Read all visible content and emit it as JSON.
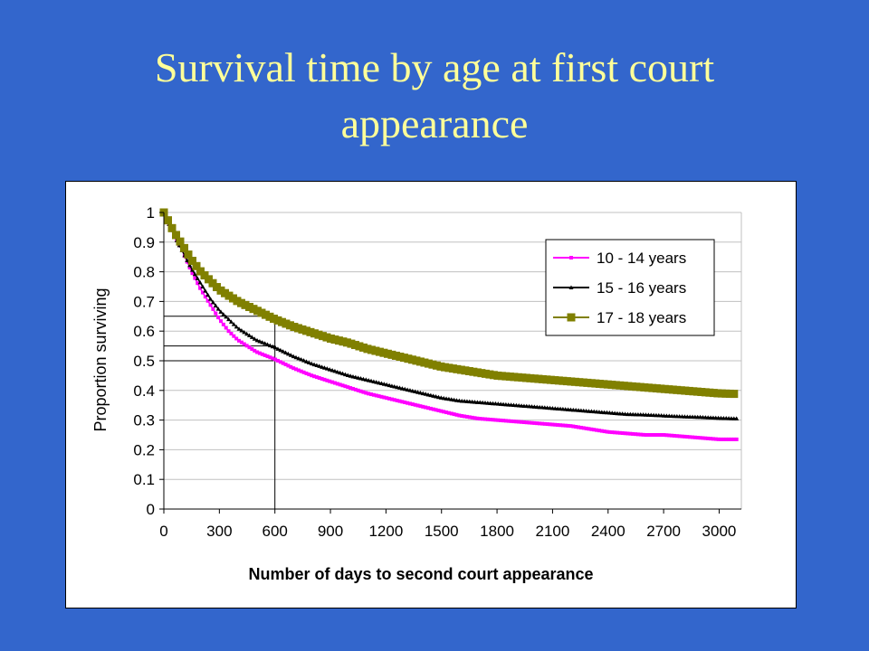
{
  "slide": {
    "title_line1": "Survival time by age at first court",
    "title_line2": "appearance"
  },
  "chart_data": {
    "type": "line",
    "xlabel": "Number of days to second court appearance",
    "ylabel": "Proportion surviving",
    "xlim": [
      0,
      3120
    ],
    "ylim": [
      0,
      1
    ],
    "x_ticks": [
      0,
      300,
      600,
      900,
      1200,
      1500,
      1800,
      2100,
      2400,
      2700,
      3000
    ],
    "y_ticks": [
      0,
      0.1,
      0.2,
      0.3,
      0.4,
      0.5,
      0.6,
      0.7,
      0.8,
      0.9,
      1
    ],
    "grid": "horizontal",
    "legend_position": "right",
    "reference_lines": [
      {
        "x": 600,
        "y": 0.65
      },
      {
        "x": 600,
        "y": 0.55
      },
      {
        "x": 600,
        "y": 0.5
      }
    ],
    "series": [
      {
        "name": "10 - 14 years",
        "color": "#ff00ff",
        "marker": "square-small",
        "x": [
          0,
          50,
          100,
          150,
          200,
          250,
          300,
          350,
          400,
          450,
          500,
          600,
          700,
          800,
          900,
          1000,
          1100,
          1200,
          1300,
          1400,
          1500,
          1600,
          1700,
          1800,
          1900,
          2000,
          2100,
          2200,
          2300,
          2400,
          2500,
          2600,
          2700,
          2800,
          2900,
          3000,
          3100
        ],
        "values": [
          1.0,
          0.93,
          0.87,
          0.8,
          0.74,
          0.69,
          0.64,
          0.6,
          0.57,
          0.55,
          0.53,
          0.505,
          0.475,
          0.45,
          0.43,
          0.41,
          0.39,
          0.375,
          0.36,
          0.345,
          0.33,
          0.315,
          0.305,
          0.3,
          0.295,
          0.29,
          0.285,
          0.28,
          0.27,
          0.26,
          0.255,
          0.25,
          0.25,
          0.245,
          0.24,
          0.235,
          0.235
        ]
      },
      {
        "name": "15 - 16 years",
        "color": "#000000",
        "marker": "triangle-small",
        "x": [
          0,
          50,
          100,
          150,
          200,
          250,
          300,
          350,
          400,
          450,
          500,
          600,
          700,
          800,
          900,
          1000,
          1100,
          1200,
          1300,
          1400,
          1500,
          1600,
          1700,
          1800,
          1900,
          2000,
          2100,
          2200,
          2300,
          2400,
          2500,
          2600,
          2700,
          2800,
          2900,
          3000,
          3100
        ],
        "values": [
          1.0,
          0.93,
          0.87,
          0.81,
          0.76,
          0.71,
          0.67,
          0.64,
          0.61,
          0.59,
          0.57,
          0.545,
          0.515,
          0.49,
          0.47,
          0.45,
          0.435,
          0.42,
          0.405,
          0.39,
          0.375,
          0.365,
          0.36,
          0.355,
          0.35,
          0.345,
          0.34,
          0.335,
          0.33,
          0.325,
          0.32,
          0.318,
          0.315,
          0.312,
          0.31,
          0.307,
          0.305
        ]
      },
      {
        "name": "17 - 18 years",
        "color": "#808000",
        "marker": "square-large",
        "x": [
          0,
          50,
          100,
          150,
          200,
          250,
          300,
          350,
          400,
          450,
          500,
          600,
          700,
          800,
          900,
          1000,
          1100,
          1200,
          1300,
          1400,
          1500,
          1600,
          1700,
          1800,
          1900,
          2000,
          2100,
          2200,
          2300,
          2400,
          2500,
          2600,
          2700,
          2800,
          2900,
          3000,
          3100
        ],
        "values": [
          1.0,
          0.94,
          0.89,
          0.84,
          0.8,
          0.77,
          0.74,
          0.72,
          0.7,
          0.685,
          0.67,
          0.64,
          0.615,
          0.595,
          0.575,
          0.56,
          0.54,
          0.525,
          0.51,
          0.495,
          0.48,
          0.47,
          0.46,
          0.45,
          0.445,
          0.44,
          0.435,
          0.43,
          0.425,
          0.42,
          0.415,
          0.41,
          0.405,
          0.4,
          0.395,
          0.39,
          0.388
        ]
      }
    ]
  }
}
